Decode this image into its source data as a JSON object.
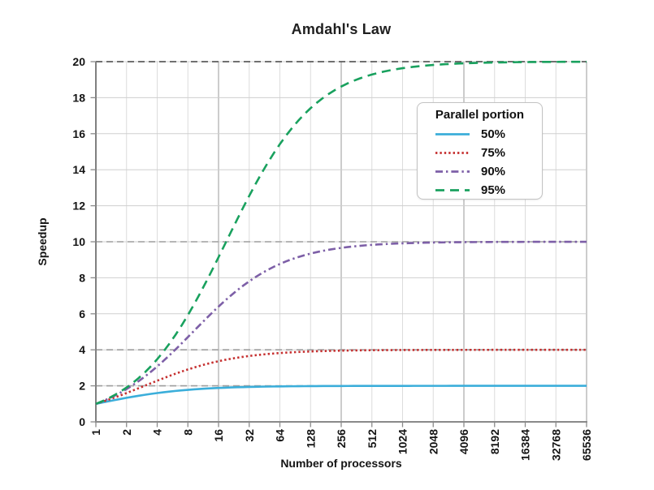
{
  "chart_data": {
    "type": "line",
    "title": "Amdahl's Law",
    "xlabel": "Number of processors",
    "ylabel": "Speedup",
    "x_scale": "log2",
    "x_ticks": [
      1,
      2,
      4,
      8,
      16,
      32,
      64,
      128,
      256,
      512,
      1024,
      2048,
      4096,
      8192,
      16384,
      32768,
      65536
    ],
    "y_ticks": [
      0,
      2,
      4,
      6,
      8,
      10,
      12,
      14,
      16,
      18,
      20
    ],
    "ylim": [
      0,
      20
    ],
    "grid": "vertical solid gridlines at each power of 2 (darker every 4th); horizontal solid gridlines every 2; gray dashed asymptote lines at 2, 4, 10, 20",
    "legend_title": "Parallel portion",
    "legend_position": "upper-right-inside",
    "series": [
      {
        "name": "50%",
        "parallel_portion": 0.5,
        "color": "#3BAEDA",
        "dash": "solid",
        "asymptote": 2,
        "values": [
          1,
          1.333,
          1.6,
          1.778,
          1.882,
          1.939,
          1.969,
          1.984,
          1.992,
          1.996,
          1.998,
          1.999,
          2.0,
          2.0,
          2.0,
          2.0,
          2.0
        ]
      },
      {
        "name": "75%",
        "parallel_portion": 0.75,
        "color": "#C52F2F",
        "dash": "dotted",
        "asymptote": 4,
        "values": [
          1,
          1.6,
          2.286,
          2.909,
          3.368,
          3.657,
          3.821,
          3.908,
          3.954,
          3.977,
          3.988,
          3.994,
          3.997,
          3.999,
          3.999,
          4.0,
          4.0
        ]
      },
      {
        "name": "90%",
        "parallel_portion": 0.9,
        "color": "#7D5FA7",
        "dash": "dashdot",
        "asymptote": 10,
        "values": [
          1,
          1.818,
          3.077,
          4.706,
          6.4,
          7.805,
          8.767,
          9.343,
          9.66,
          9.827,
          9.913,
          9.956,
          9.978,
          9.989,
          9.995,
          9.997,
          9.999
        ]
      },
      {
        "name": "95%",
        "parallel_portion": 0.95,
        "color": "#19A15E",
        "dash": "dashed",
        "asymptote": 20,
        "values": [
          1,
          1.905,
          3.478,
          5.926,
          9.143,
          12.549,
          15.422,
          17.415,
          18.618,
          19.284,
          19.636,
          19.816,
          19.908,
          19.954,
          19.977,
          19.988,
          19.994
        ]
      }
    ]
  }
}
